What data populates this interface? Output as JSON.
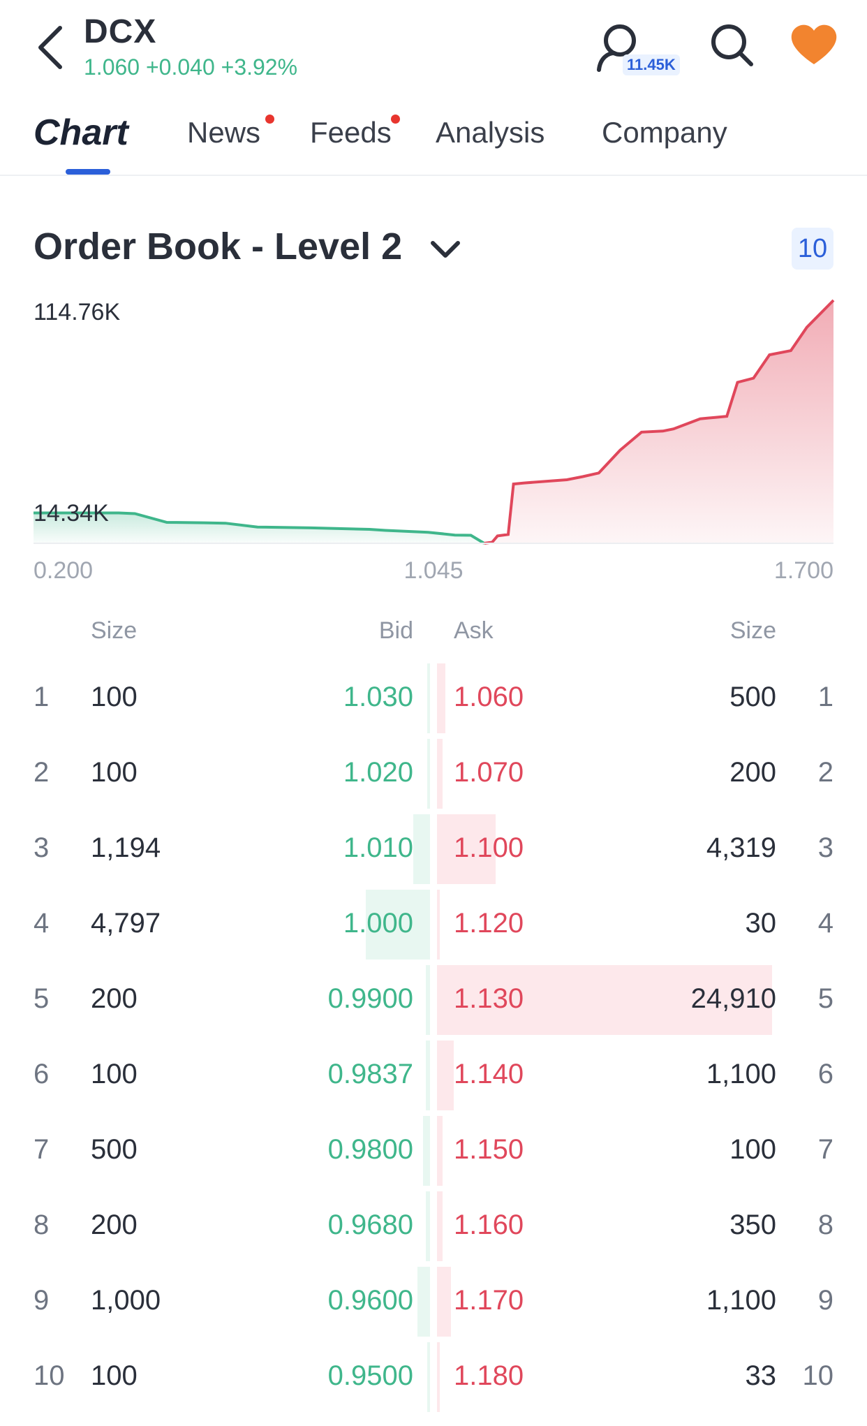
{
  "header": {
    "ticker": "DCX",
    "quote": "1.060 +0.040 +3.92%",
    "user_count": "11.45K"
  },
  "tabs": [
    {
      "label": "Chart",
      "active": true,
      "dot": false
    },
    {
      "label": "News",
      "active": false,
      "dot": true
    },
    {
      "label": "Feeds",
      "active": false,
      "dot": true
    },
    {
      "label": "Analysis",
      "active": false,
      "dot": false
    },
    {
      "label": "Company",
      "active": false,
      "dot": false
    }
  ],
  "order_book": {
    "title": "Order Book - Level 2",
    "depth": "10"
  },
  "colors": {
    "bid": "#3fb68b",
    "ask": "#e0475b",
    "accent": "#2b5fd9",
    "favorite": "#f2842f"
  },
  "chart_data": {
    "type": "area",
    "y_top_label": "114.76K",
    "y_mid_label": "14.34K",
    "x_ticks": [
      "0.200",
      "1.045",
      "1.700"
    ],
    "xlim": [
      0.2,
      1.7
    ],
    "ylim": [
      0,
      114760
    ],
    "series": [
      {
        "side": "bid",
        "x": [
          0.2,
          0.36,
          0.39,
          0.45,
          0.52,
          0.56,
          0.62,
          0.72,
          0.83,
          0.86,
          0.94,
          0.99,
          1.02,
          1.045
        ],
        "y": [
          14340,
          14340,
          14000,
          9900,
          9700,
          9500,
          7700,
          7300,
          6600,
          6100,
          5200,
          3900,
          3800,
          0
        ]
      },
      {
        "side": "ask",
        "x": [
          1.045,
          1.06,
          1.07,
          1.09,
          1.1,
          1.12,
          1.2,
          1.23,
          1.26,
          1.3,
          1.34,
          1.38,
          1.4,
          1.45,
          1.48,
          1.5,
          1.52,
          1.55,
          1.58,
          1.62,
          1.65,
          1.7
        ],
        "y": [
          0,
          500,
          3500,
          4200,
          28000,
          28500,
          30000,
          31500,
          33200,
          44000,
          52500,
          53000,
          54000,
          58800,
          59500,
          60000,
          76000,
          78000,
          89000,
          91000,
          102000,
          114760
        ]
      }
    ]
  },
  "table": {
    "headers": {
      "bid_size": "Size",
      "bid": "Bid",
      "ask": "Ask",
      "ask_size": "Size"
    },
    "rows": [
      {
        "n": "1",
        "bid_size": "100",
        "bid": "1.030",
        "ask": "1.060",
        "ask_size": "500"
      },
      {
        "n": "2",
        "bid_size": "100",
        "bid": "1.020",
        "ask": "1.070",
        "ask_size": "200"
      },
      {
        "n": "3",
        "bid_size": "1,194",
        "bid": "1.010",
        "ask": "1.100",
        "ask_size": "4,319"
      },
      {
        "n": "4",
        "bid_size": "4,797",
        "bid": "1.000",
        "ask": "1.120",
        "ask_size": "30"
      },
      {
        "n": "5",
        "bid_size": "200",
        "bid": "0.9900",
        "ask": "1.130",
        "ask_size": "24,910"
      },
      {
        "n": "6",
        "bid_size": "100",
        "bid": "0.9837",
        "ask": "1.140",
        "ask_size": "1,100"
      },
      {
        "n": "7",
        "bid_size": "500",
        "bid": "0.9800",
        "ask": "1.150",
        "ask_size": "100"
      },
      {
        "n": "8",
        "bid_size": "200",
        "bid": "0.9680",
        "ask": "1.160",
        "ask_size": "350"
      },
      {
        "n": "9",
        "bid_size": "1,000",
        "bid": "0.9600",
        "ask": "1.170",
        "ask_size": "1,100"
      },
      {
        "n": "10",
        "bid_size": "100",
        "bid": "0.9500",
        "ask": "1.180",
        "ask_size": "33"
      }
    ]
  }
}
